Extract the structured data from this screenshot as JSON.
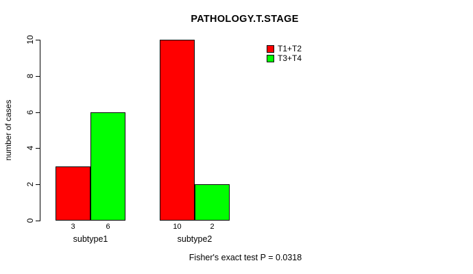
{
  "chart_data": {
    "type": "bar",
    "title": "PATHOLOGY.T.STAGE",
    "ylabel": "number of cases",
    "xlabel": "",
    "categories": [
      "subtype1",
      "subtype2"
    ],
    "series": [
      {
        "name": "T1+T2",
        "color": "#ff0000",
        "values": [
          3,
          10
        ]
      },
      {
        "name": "T3+T4",
        "color": "#00ff00",
        "values": [
          6,
          2
        ]
      }
    ],
    "yticks": [
      0,
      2,
      4,
      6,
      8,
      10
    ],
    "ylim": [
      0,
      10
    ],
    "grid": false,
    "legend_position": "top-right",
    "bar_border_color": "#000000",
    "annotation": "Fisher's exact test P = 0.0318"
  }
}
